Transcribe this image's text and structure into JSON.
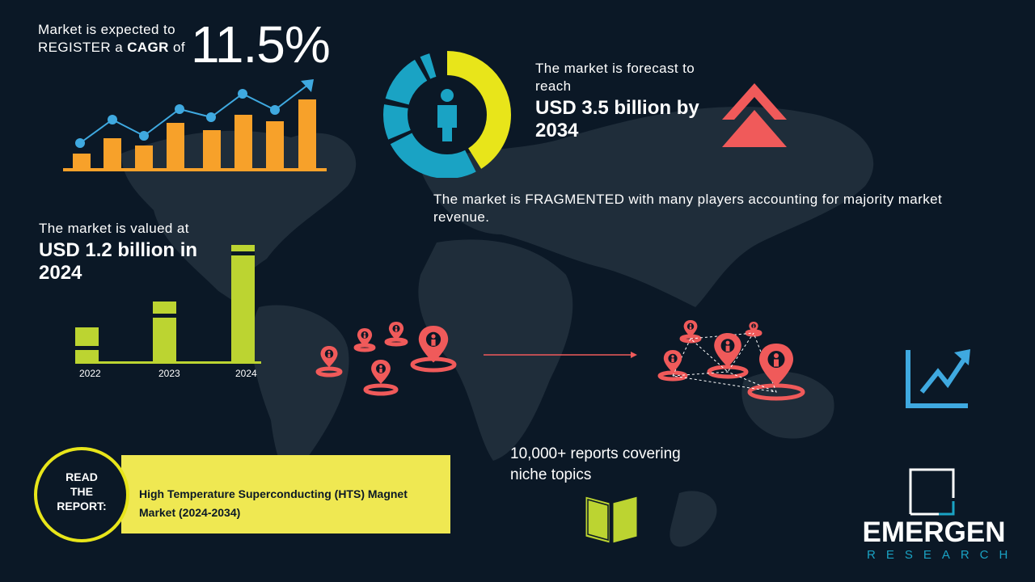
{
  "cagr": {
    "line1": "Market is expected to",
    "line2_prefix": "REGISTER a ",
    "line2_bold": "CAGR",
    "line2_suffix": " of",
    "value": "11.5%"
  },
  "forecast": {
    "label": "The market is forecast to reach",
    "value": "USD 3.5 billion by 2034"
  },
  "fragmented": {
    "text": "The market is FRAGMENTED with many players accounting for majority market revenue."
  },
  "valued": {
    "label": "The market is valued at",
    "value": "USD 1.2 billion in 2024"
  },
  "year_bars": {
    "labels": [
      "2022",
      "2023",
      "2024"
    ]
  },
  "reports": {
    "text": "10,000+ reports covering niche topics"
  },
  "read_report": {
    "badge_line1": "READ",
    "badge_line2": "THE",
    "badge_line3": "REPORT:",
    "title": "High Temperature Superconducting (HTS) Magnet Market (2024-2034)"
  },
  "logo": {
    "name": "EMERGEN",
    "sub": "RESEARCH"
  },
  "colors": {
    "background": "#0b1826",
    "orange": "#f7a12a",
    "blue": "#3fa9e0",
    "yellow": "#e8e51a",
    "teal": "#1aa3c4",
    "red": "#f05a5a",
    "green": "#bcd431",
    "banner": "#efe852"
  },
  "icons": [
    "growth-chart-icon",
    "donut-person-icon",
    "double-chevron-up-icon",
    "location-pin-icon",
    "trend-up-icon",
    "open-book-icon",
    "emergen-logo-icon"
  ]
}
